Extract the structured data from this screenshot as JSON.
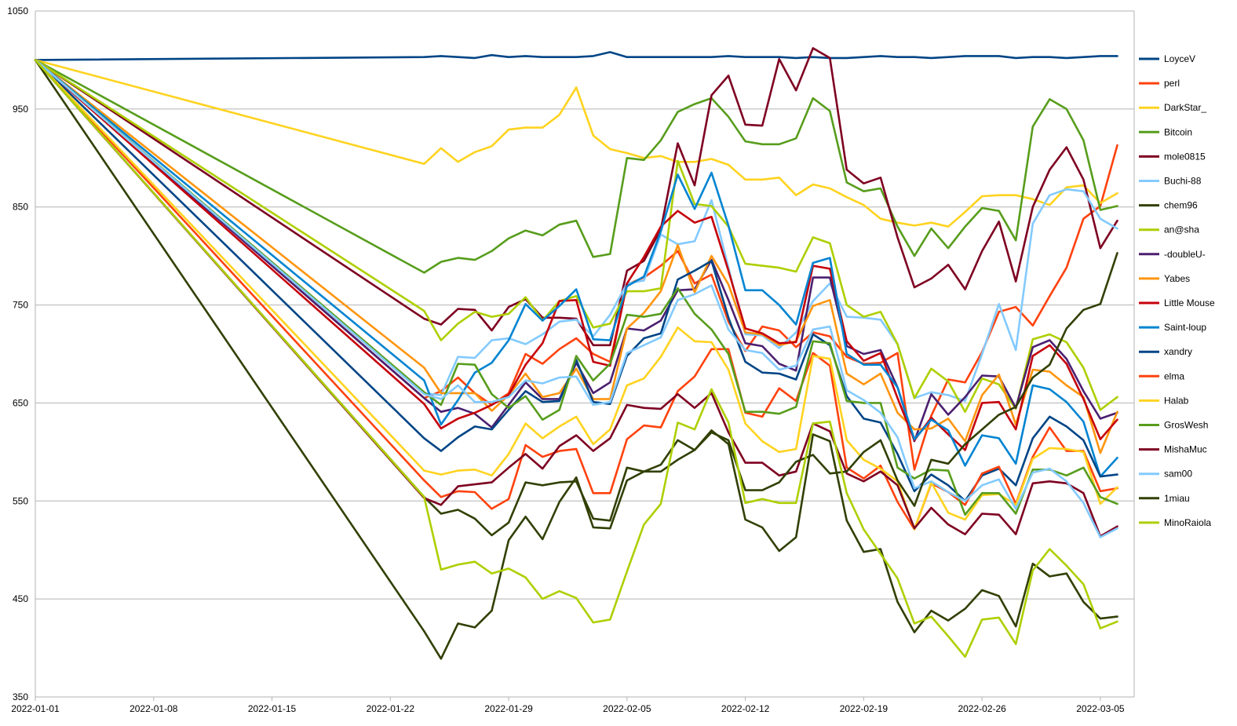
{
  "chart_data": {
    "type": "line",
    "title": "",
    "xlabel": "",
    "ylabel": "",
    "ylim": [
      350,
      1050
    ],
    "yticks": [
      350,
      450,
      550,
      650,
      750,
      850,
      950,
      1050
    ],
    "xlim": [
      "2022-01-01",
      "2022-03-07"
    ],
    "xticks": [
      "2022-01-01",
      "2022-01-08",
      "2022-01-15",
      "2022-01-22",
      "2022-01-29",
      "2022-02-05",
      "2022-02-12",
      "2022-02-19",
      "2022-02-26",
      "2022-03-05"
    ],
    "grid": "horizontal",
    "legend": "right",
    "x": [
      "2022-01-01",
      "2022-01-24",
      "2022-01-25",
      "2022-01-26",
      "2022-01-27",
      "2022-01-28",
      "2022-01-29",
      "2022-01-30",
      "2022-01-31",
      "2022-02-01",
      "2022-02-02",
      "2022-02-03",
      "2022-02-04",
      "2022-02-05",
      "2022-02-06",
      "2022-02-07",
      "2022-02-08",
      "2022-02-09",
      "2022-02-10",
      "2022-02-11",
      "2022-02-12",
      "2022-02-13",
      "2022-02-14",
      "2022-02-15",
      "2022-02-16",
      "2022-02-17",
      "2022-02-18",
      "2022-02-19",
      "2022-02-20",
      "2022-02-21",
      "2022-02-22",
      "2022-02-23",
      "2022-02-24",
      "2022-02-25",
      "2022-02-26",
      "2022-02-27",
      "2022-02-28",
      "2022-03-01",
      "2022-03-02",
      "2022-03-03",
      "2022-03-04",
      "2022-03-05",
      "2022-03-06"
    ],
    "series": [
      {
        "name": "LoyceV",
        "color": "#004586",
        "values": [
          1000,
          1003,
          1004,
          1003,
          1002,
          1005,
          1003,
          1004,
          1003,
          1003,
          1003,
          1004,
          1008,
          1003,
          1003,
          1003,
          1003,
          1003,
          1003,
          1004,
          1003,
          1003,
          1003,
          1002,
          1003,
          1002,
          1002,
          1003,
          1004,
          1003,
          1003,
          1002,
          1003,
          1004,
          1004,
          1004,
          1002,
          1003,
          1003,
          1002,
          1003,
          1004,
          1004
        ]
      },
      {
        "name": "perl",
        "color": "#ff420e",
        "values": [
          1000,
          655,
          662,
          676,
          660,
          648,
          660,
          700,
          690,
          705,
          716,
          700,
          692,
          771,
          778,
          790,
          805,
          772,
          781,
          733,
          703,
          728,
          724,
          707,
          722,
          718,
          697,
          690,
          691,
          701,
          582,
          637,
          674,
          671,
          702,
          743,
          748,
          729,
          759,
          788,
          838,
          851,
          913
        ]
      },
      {
        "name": "DarkStar_",
        "color": "#ffd320",
        "values": [
          1000,
          894,
          910,
          896,
          906,
          912,
          929,
          931,
          931,
          944,
          972,
          923,
          909,
          905,
          900,
          902,
          896,
          896,
          899,
          893,
          878,
          878,
          880,
          862,
          873,
          869,
          860,
          852,
          838,
          834,
          831,
          834,
          830,
          845,
          861,
          862,
          862,
          858,
          852,
          870,
          872,
          854,
          864
        ]
      },
      {
        "name": "Bitcoin",
        "color": "#579d1c",
        "values": [
          1000,
          783,
          794,
          798,
          796,
          805,
          818,
          826,
          821,
          832,
          836,
          799,
          802,
          900,
          898,
          918,
          947,
          955,
          961,
          942,
          917,
          914,
          914,
          920,
          961,
          948,
          875,
          866,
          869,
          830,
          800,
          828,
          808,
          830,
          849,
          846,
          816,
          932,
          960,
          950,
          918,
          847,
          851
        ]
      },
      {
        "name": "mole0815",
        "color": "#7e0021",
        "values": [
          1000,
          736,
          730,
          746,
          745,
          724,
          748,
          756,
          737,
          737,
          736,
          709,
          709,
          785,
          795,
          827,
          915,
          872,
          964,
          984,
          934,
          933,
          1001,
          969,
          1012,
          1002,
          888,
          874,
          880,
          819,
          768,
          777,
          791,
          766,
          805,
          835,
          774,
          850,
          888,
          911,
          878,
          808,
          836
        ]
      },
      {
        "name": "Buchi-88",
        "color": "#83caff",
        "values": [
          1000,
          660,
          658,
          697,
          696,
          714,
          716,
          710,
          720,
          733,
          735,
          718,
          740,
          772,
          775,
          822,
          812,
          815,
          857,
          788,
          720,
          719,
          706,
          722,
          754,
          772,
          738,
          737,
          735,
          710,
          655,
          661,
          658,
          652,
          700,
          751,
          704,
          833,
          862,
          868,
          866,
          838,
          828
        ]
      },
      {
        "name": "chem96",
        "color": "#314004",
        "values": [
          1000,
          554,
          537,
          541,
          532,
          515,
          528,
          569,
          566,
          569,
          570,
          532,
          530,
          584,
          580,
          587,
          612,
          602,
          622,
          608,
          531,
          523,
          499,
          513,
          618,
          611,
          530,
          498,
          501,
          447,
          416,
          438,
          428,
          440,
          459,
          453,
          422,
          486,
          473,
          476,
          447,
          430,
          432
        ]
      },
      {
        "name": "an@sha",
        "color": "#aecf00",
        "values": [
          1000,
          744,
          714,
          731,
          743,
          738,
          741,
          758,
          734,
          754,
          759,
          727,
          731,
          764,
          764,
          767,
          897,
          853,
          851,
          830,
          792,
          790,
          788,
          784,
          819,
          813,
          750,
          738,
          743,
          710,
          655,
          685,
          672,
          641,
          675,
          669,
          644,
          715,
          720,
          712,
          686,
          643,
          656
        ]
      },
      {
        "name": "-doubleU-",
        "color": "#4b1f6f",
        "values": [
          1000,
          655,
          641,
          645,
          639,
          625,
          648,
          671,
          654,
          654,
          691,
          660,
          671,
          726,
          724,
          734,
          765,
          766,
          796,
          755,
          711,
          708,
          690,
          683,
          778,
          778,
          708,
          700,
          704,
          666,
          611,
          659,
          638,
          656,
          678,
          677,
          645,
          707,
          714,
          695,
          662,
          634,
          640
        ]
      },
      {
        "name": "Yabes",
        "color": "#ff950e",
        "values": [
          1000,
          686,
          660,
          660,
          660,
          642,
          658,
          680,
          656,
          660,
          685,
          654,
          654,
          726,
          742,
          764,
          811,
          763,
          800,
          771,
          722,
          720,
          709,
          713,
          749,
          755,
          680,
          669,
          680,
          640,
          623,
          624,
          634,
          611,
          658,
          679,
          628,
          684,
          682,
          668,
          656,
          599,
          641
        ]
      },
      {
        "name": "Little Mouse",
        "color": "#c5000b",
        "values": [
          1000,
          649,
          624,
          634,
          640,
          648,
          658,
          689,
          711,
          754,
          755,
          692,
          688,
          772,
          799,
          830,
          846,
          834,
          840,
          785,
          726,
          721,
          711,
          712,
          790,
          787,
          713,
          693,
          701,
          655,
          612,
          635,
          618,
          602,
          650,
          651,
          623,
          698,
          709,
          690,
          654,
          613,
          633
        ]
      },
      {
        "name": "Saint-loup",
        "color": "#0084d1",
        "values": [
          1000,
          673,
          628,
          653,
          681,
          691,
          714,
          751,
          734,
          749,
          766,
          715,
          714,
          769,
          779,
          825,
          883,
          848,
          885,
          831,
          765,
          765,
          750,
          730,
          793,
          798,
          700,
          689,
          689,
          666,
          613,
          633,
          622,
          586,
          617,
          614,
          588,
          668,
          664,
          651,
          631,
          575,
          594
        ]
      },
      {
        "name": "xandry",
        "color": "#004586",
        "values": [
          1000,
          614,
          601,
          615,
          626,
          623,
          643,
          662,
          651,
          652,
          694,
          651,
          649,
          698,
          716,
          721,
          776,
          785,
          795,
          737,
          692,
          681,
          680,
          674,
          720,
          709,
          657,
          634,
          630,
          598,
          560,
          577,
          566,
          550,
          576,
          583,
          566,
          614,
          636,
          626,
          612,
          575,
          577
        ]
      },
      {
        "name": "elma",
        "color": "#ff420e",
        "values": [
          1000,
          571,
          554,
          560,
          559,
          542,
          552,
          607,
          595,
          601,
          603,
          558,
          558,
          613,
          627,
          625,
          662,
          677,
          705,
          705,
          640,
          636,
          665,
          652,
          701,
          688,
          584,
          573,
          586,
          549,
          521,
          568,
          559,
          546,
          578,
          585,
          547,
          595,
          625,
          601,
          601,
          560,
          563
        ]
      },
      {
        "name": "Halab",
        "color": "#ffd320",
        "values": [
          1000,
          581,
          577,
          581,
          582,
          576,
          598,
          629,
          614,
          626,
          636,
          608,
          623,
          668,
          675,
          697,
          727,
          713,
          712,
          684,
          629,
          611,
          600,
          603,
          698,
          695,
          612,
          592,
          583,
          570,
          521,
          569,
          538,
          531,
          556,
          557,
          546,
          593,
          604,
          603,
          600,
          547,
          564
        ]
      },
      {
        "name": "GrosWesh",
        "color": "#579d1c",
        "values": [
          1000,
          661,
          648,
          690,
          689,
          659,
          645,
          657,
          633,
          643,
          698,
          673,
          690,
          740,
          738,
          741,
          767,
          741,
          725,
          700,
          641,
          641,
          639,
          646,
          713,
          711,
          652,
          650,
          650,
          584,
          573,
          582,
          581,
          536,
          558,
          558,
          537,
          582,
          582,
          576,
          584,
          554,
          547
        ]
      },
      {
        "name": "MishaMuc",
        "color": "#7e0021",
        "values": [
          1000,
          553,
          546,
          565,
          567,
          569,
          584,
          598,
          583,
          606,
          617,
          601,
          614,
          648,
          645,
          644,
          659,
          645,
          660,
          620,
          589,
          589,
          576,
          580,
          629,
          621,
          578,
          570,
          580,
          566,
          522,
          543,
          526,
          516,
          537,
          536,
          516,
          568,
          570,
          568,
          558,
          514,
          524
        ]
      },
      {
        "name": "sam00",
        "color": "#83caff",
        "values": [
          1000,
          659,
          654,
          668,
          651,
          651,
          656,
          673,
          670,
          676,
          677,
          648,
          651,
          701,
          709,
          717,
          755,
          761,
          770,
          725,
          704,
          701,
          684,
          688,
          725,
          728,
          663,
          653,
          640,
          615,
          563,
          570,
          559,
          550,
          566,
          572,
          542,
          579,
          583,
          570,
          548,
          513,
          522
        ]
      },
      {
        "name": "1miau",
        "color": "#314004",
        "values": [
          1000,
          417,
          389,
          425,
          421,
          438,
          510,
          534,
          511,
          549,
          574,
          523,
          522,
          571,
          580,
          580,
          592,
          602,
          620,
          612,
          561,
          561,
          569,
          590,
          597,
          578,
          580,
          600,
          612,
          571,
          545,
          592,
          588,
          608,
          623,
          638,
          646,
          676,
          689,
          726,
          745,
          751,
          803
        ]
      },
      {
        "name": "MinoRaiola",
        "color": "#aecf00",
        "values": [
          1000,
          554,
          480,
          485,
          488,
          476,
          481,
          472,
          450,
          458,
          451,
          426,
          429,
          478,
          526,
          547,
          630,
          623,
          664,
          630,
          548,
          552,
          548,
          548,
          629,
          631,
          558,
          521,
          496,
          471,
          425,
          432,
          412,
          391,
          429,
          431,
          404,
          479,
          501,
          484,
          465,
          420,
          427
        ]
      }
    ]
  }
}
